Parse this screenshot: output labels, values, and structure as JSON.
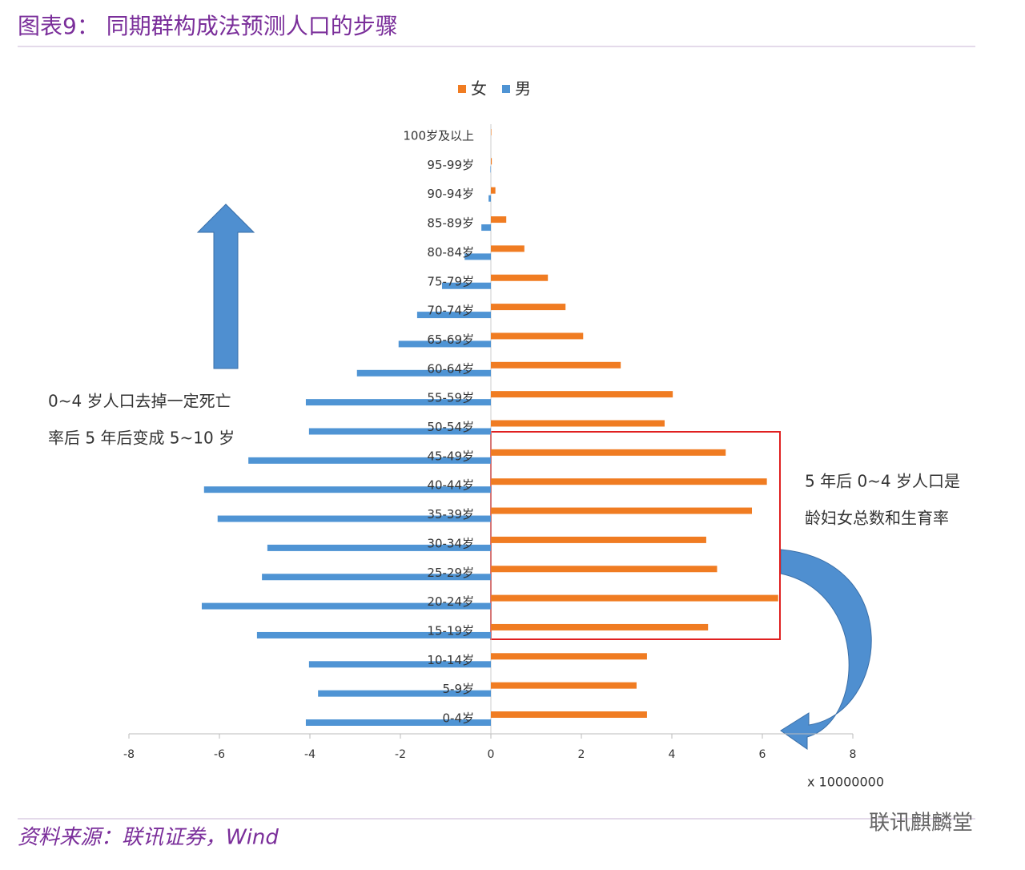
{
  "chart_data": {
    "type": "pyramid",
    "title": "图表9：  同期群构成法预测人口的步骤",
    "categories": [
      "0-4岁",
      "5-9岁",
      "10-14岁",
      "15-19岁",
      "20-24岁",
      "25-29岁",
      "30-34岁",
      "35-39岁",
      "40-44岁",
      "45-49岁",
      "50-54岁",
      "55-59岁",
      "60-64岁",
      "65-69岁",
      "70-74岁",
      "75-79岁",
      "80-84岁",
      "85-89岁",
      "90-94岁",
      "95-99岁",
      "100岁及以上"
    ],
    "series": [
      {
        "name": "女",
        "color": "#f07c22",
        "values": [
          3.45,
          3.22,
          3.45,
          4.8,
          6.35,
          5.0,
          4.76,
          5.77,
          6.1,
          5.19,
          3.84,
          4.02,
          2.87,
          2.04,
          1.65,
          1.26,
          0.74,
          0.34,
          0.1,
          0.02,
          0.01
        ]
      },
      {
        "name": "男",
        "color": "#4f94d4",
        "values": [
          -4.09,
          -3.82,
          -4.02,
          -5.17,
          -6.39,
          -5.06,
          -4.94,
          -6.04,
          -6.34,
          -5.36,
          -4.02,
          -4.09,
          -2.96,
          -2.04,
          -1.63,
          -1.08,
          -0.58,
          -0.21,
          -0.05,
          -0.01,
          0
        ]
      }
    ],
    "xlim": [
      -8,
      8
    ],
    "xticks": [
      -8,
      -6,
      -4,
      -2,
      0,
      2,
      4,
      6,
      8
    ],
    "x_unit_label": "x 10000000",
    "legend_position": "top",
    "annotations": [
      "0~4 岁人口去掉一定死亡",
      "率后 5 年后变成 5~10 岁",
      "5 年后 0~4 岁人口是",
      "龄妇女总数和生育率"
    ],
    "source": "资料来源：联讯证券，Wind",
    "watermark": "联讯麒麟堂"
  }
}
